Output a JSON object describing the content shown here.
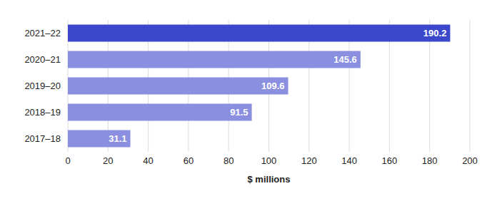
{
  "chart_data": {
    "type": "bar",
    "orientation": "horizontal",
    "xlabel": "$ millions",
    "categories": [
      "2021–22",
      "2020–21",
      "2019–20",
      "2018–19",
      "2017–18"
    ],
    "values": [
      190.2,
      145.6,
      109.6,
      91.5,
      31.1
    ],
    "colors": [
      "#3b48cc",
      "#8a8fe0",
      "#8a8fe0",
      "#8a8fe0",
      "#8a8fe0"
    ],
    "xlim": [
      0,
      200
    ],
    "xticks": [
      0,
      20,
      40,
      60,
      80,
      100,
      120,
      140,
      160,
      180,
      200
    ],
    "grid": true,
    "data_labels": true
  }
}
